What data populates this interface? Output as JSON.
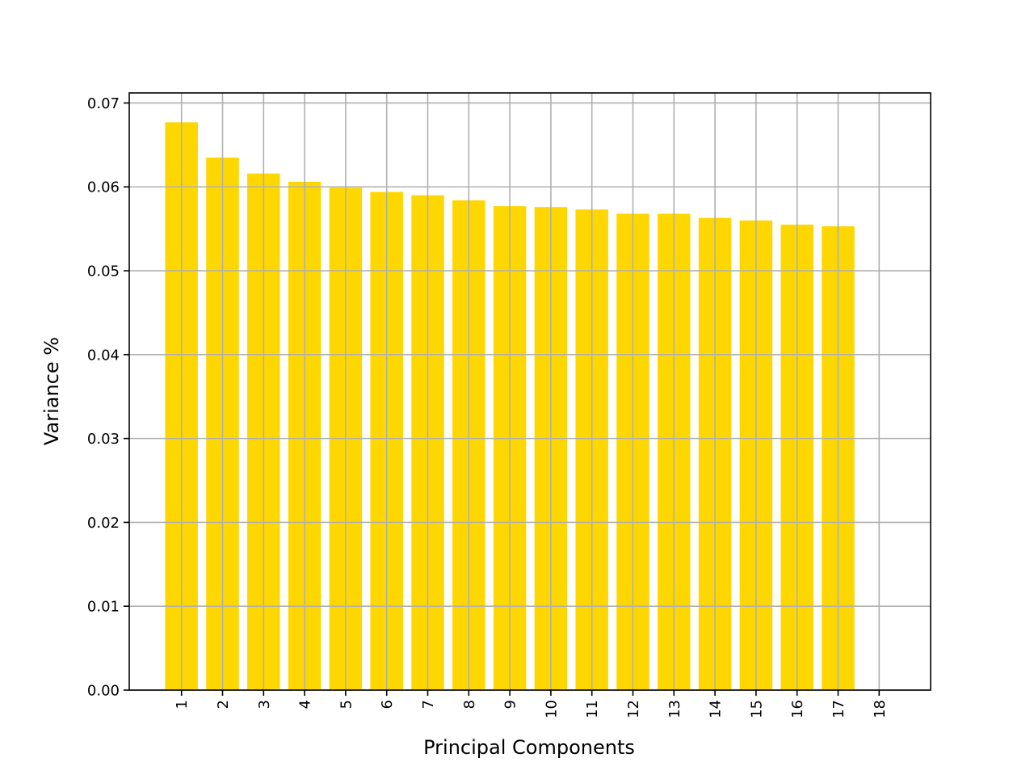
{
  "chart_data": {
    "type": "bar",
    "categories": [
      "1",
      "2",
      "3",
      "4",
      "5",
      "6",
      "7",
      "8",
      "9",
      "10",
      "11",
      "12",
      "13",
      "14",
      "15",
      "16",
      "17",
      "18"
    ],
    "values": [
      0.0677,
      0.0635,
      0.0616,
      0.0606,
      0.0599,
      0.0594,
      0.059,
      0.0584,
      0.0577,
      0.0576,
      0.0573,
      0.0568,
      0.0568,
      0.0563,
      0.056,
      0.0555,
      0.0553,
      0.0
    ],
    "title": "",
    "xlabel": "Principal Components",
    "ylabel": "Variance %",
    "ylim": [
      0,
      0.0712
    ],
    "yticks": [
      "0.00",
      "0.01",
      "0.02",
      "0.03",
      "0.04",
      "0.05",
      "0.06",
      "0.07"
    ],
    "ytick_values": [
      0,
      0.01,
      0.02,
      0.03,
      0.04,
      0.05,
      0.06,
      0.07
    ],
    "grid": true,
    "colors": {
      "bar": "#FFD700",
      "grid": "#b0b0b0",
      "axis": "#000000"
    }
  }
}
